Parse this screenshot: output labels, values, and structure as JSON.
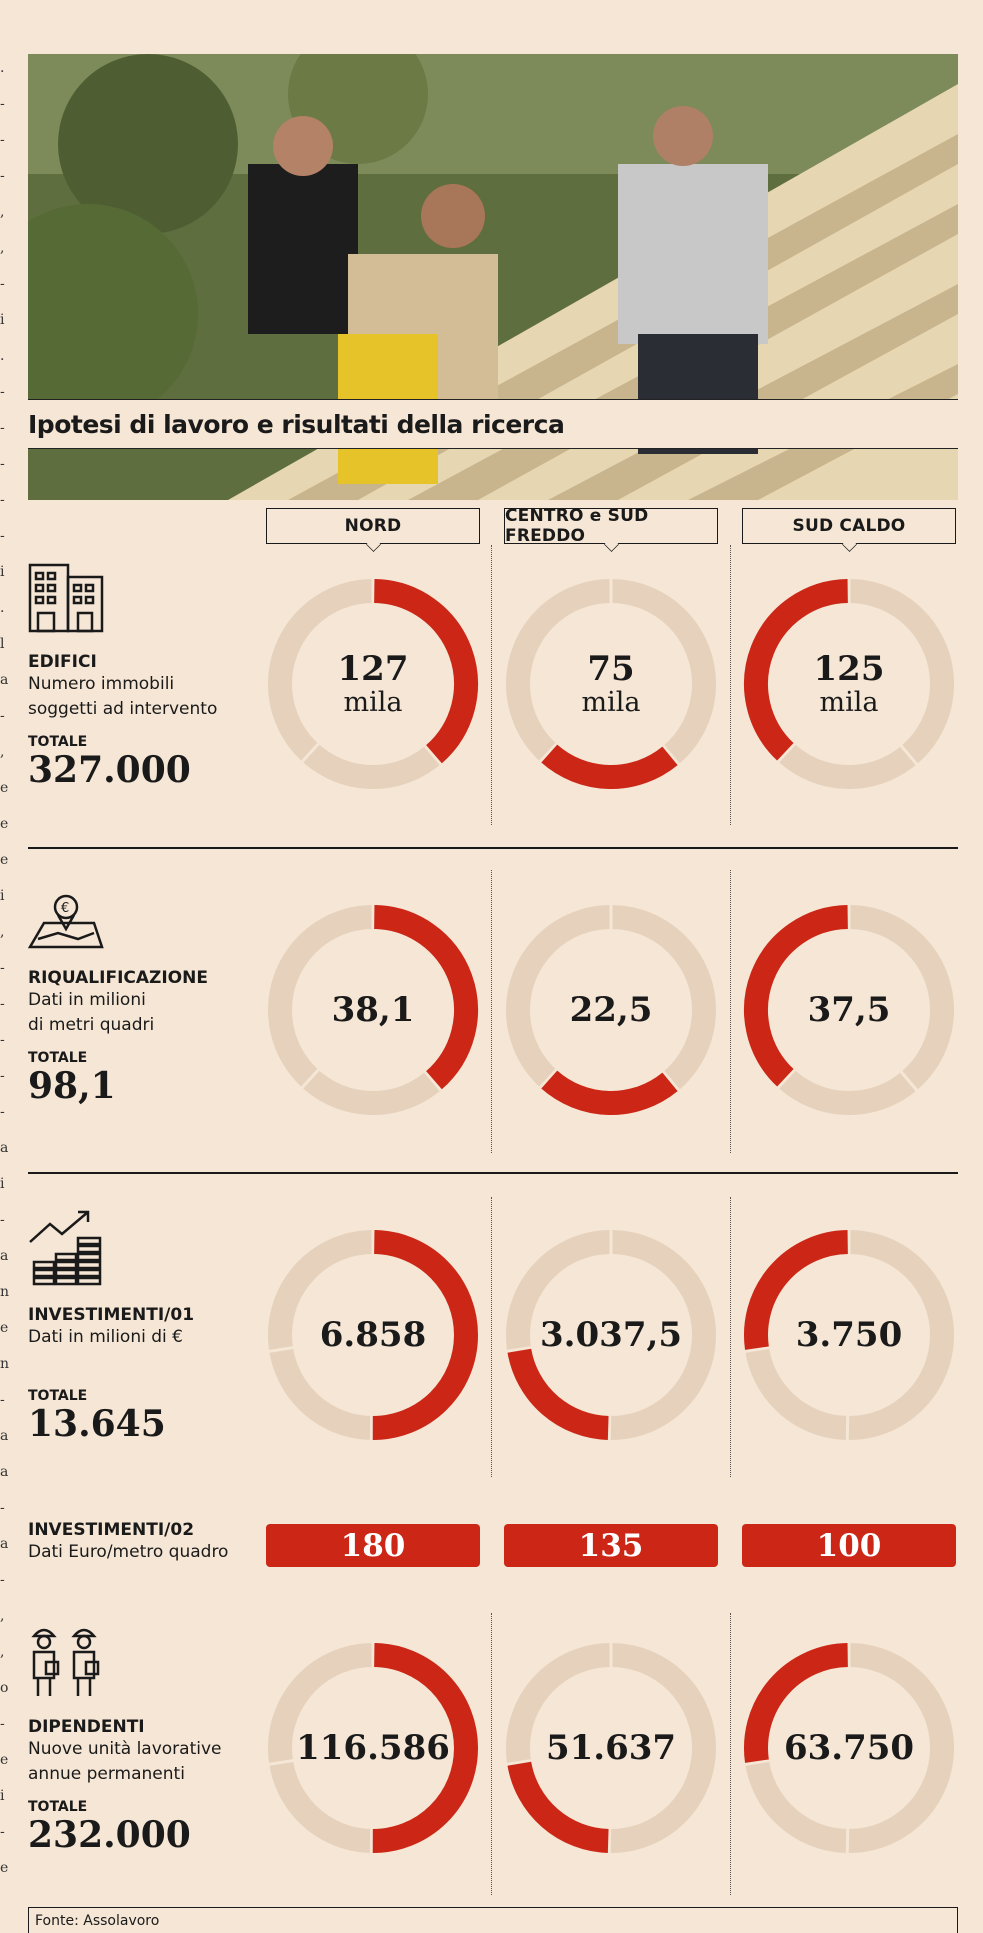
{
  "subtitle": "Ipotesi di lavoro e risultati della ricerca",
  "regions": [
    "NORD",
    "CENTRO e SUD FREDDO",
    "SUD CALDO"
  ],
  "colors": {
    "accent": "#cc2616",
    "track": "#e6d2bc",
    "background": "#f5e6d5"
  },
  "metrics": {
    "edifici": {
      "title": "EDIFICI",
      "desc1": "Numero immobili",
      "desc2": "soggetti ad intervento",
      "total_label": "TOTALE",
      "total": "327.000",
      "icon": "buildings-icon"
    },
    "riqualificazione": {
      "title": "RIQUALIFICAZIONE",
      "desc1": "Dati in milioni",
      "desc2": "di metri quadri",
      "total_label": "TOTALE",
      "total": "98,1",
      "icon": "map-euro-pin-icon"
    },
    "investimenti1": {
      "title": "INVESTIMENTI/01",
      "desc1": "Dati in milioni di €",
      "total_label": "TOTALE",
      "total": "13.645",
      "icon": "growth-coins-icon"
    },
    "investimenti2": {
      "title": "INVESTIMENTI/02",
      "desc1": "Dati Euro/metro quadro"
    },
    "dipendenti": {
      "title": "DIPENDENTI",
      "desc1": "Nuove unità lavorative",
      "desc2": "annue permanenti",
      "total_label": "TOTALE",
      "total": "232.000",
      "icon": "workers-icon"
    }
  },
  "source": "Fonte: Assolavoro",
  "chart_data": [
    {
      "type": "pie",
      "title": "EDIFICI",
      "categories": [
        "NORD",
        "CENTRO e SUD FREDDO",
        "SUD CALDO"
      ],
      "values": [
        127,
        75,
        125
      ],
      "labels": [
        "127",
        "75",
        "125"
      ],
      "unit": "mila",
      "total": 327000
    },
    {
      "type": "pie",
      "title": "RIQUALIFICAZIONE",
      "categories": [
        "NORD",
        "CENTRO e SUD FREDDO",
        "SUD CALDO"
      ],
      "values": [
        38.1,
        22.5,
        37.5
      ],
      "labels": [
        "38,1",
        "22,5",
        "37,5"
      ],
      "total": 98.1
    },
    {
      "type": "pie",
      "title": "INVESTIMENTI/01",
      "categories": [
        "NORD",
        "CENTRO e SUD FREDDO",
        "SUD CALDO"
      ],
      "values": [
        6858,
        3037.5,
        3750
      ],
      "labels": [
        "6.858",
        "3.037,5",
        "3.750"
      ],
      "total": 13645
    },
    {
      "type": "table",
      "title": "INVESTIMENTI/02",
      "categories": [
        "NORD",
        "CENTRO e SUD FREDDO",
        "SUD CALDO"
      ],
      "values": [
        180,
        135,
        100
      ],
      "labels": [
        "180",
        "135",
        "100"
      ]
    },
    {
      "type": "pie",
      "title": "DIPENDENTI",
      "categories": [
        "NORD",
        "CENTRO e SUD FREDDO",
        "SUD CALDO"
      ],
      "values": [
        116586,
        51637,
        63750
      ],
      "labels": [
        "116.586",
        "51.637",
        "63.750"
      ],
      "total": 232000
    }
  ]
}
